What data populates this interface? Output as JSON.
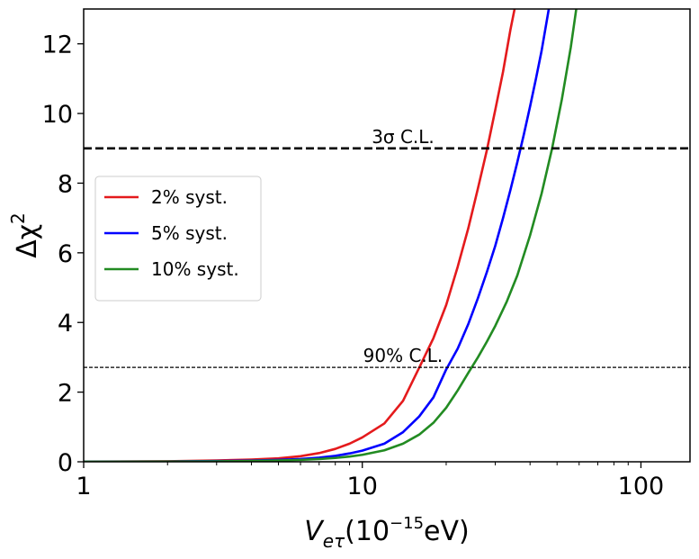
{
  "chart_data": {
    "type": "line",
    "xscale": "log",
    "xlim": [
      1,
      150
    ],
    "ylim": [
      0,
      13
    ],
    "xlabel": {
      "base": "V",
      "subscript": "eτ",
      "unit_open": "(10",
      "unit_exp": "−15",
      "unit_close": "eV)"
    },
    "ylabel": {
      "base": "Δχ",
      "exp": "2"
    },
    "xticks": [
      {
        "value": 1,
        "label": "1"
      },
      {
        "value": 10,
        "label": "10"
      },
      {
        "value": 100,
        "label": "100"
      }
    ],
    "yticks": [
      {
        "value": 0,
        "label": "0"
      },
      {
        "value": 2,
        "label": "2"
      },
      {
        "value": 4,
        "label": "4"
      },
      {
        "value": 6,
        "label": "6"
      },
      {
        "value": 8,
        "label": "8"
      },
      {
        "value": 10,
        "label": "10"
      },
      {
        "value": 12,
        "label": "12"
      }
    ],
    "legend_position": "center-left",
    "grid": false,
    "series": [
      {
        "name": "2% syst.",
        "color": "#e41a1c",
        "x": [
          1,
          2,
          3,
          4,
          5,
          6,
          7,
          8,
          9,
          10,
          12,
          14,
          16,
          18,
          20,
          22,
          24,
          26,
          28,
          30,
          32,
          34,
          35.2
        ],
        "y": [
          0.004,
          0.016,
          0.036,
          0.064,
          0.1,
          0.16,
          0.25,
          0.37,
          0.52,
          0.7,
          1.1,
          1.75,
          2.7,
          3.55,
          4.5,
          5.6,
          6.7,
          7.85,
          8.95,
          10.1,
          11.2,
          12.4,
          13.0
        ]
      },
      {
        "name": "5% syst.",
        "color": "#0000ff",
        "x": [
          1,
          2,
          3,
          4,
          5,
          6,
          7,
          8,
          9,
          10,
          12,
          14,
          16,
          18,
          20,
          22,
          24,
          26,
          28,
          30,
          32,
          34,
          36,
          38,
          40,
          42,
          44,
          46.7
        ],
        "y": [
          0.002,
          0.009,
          0.02,
          0.035,
          0.055,
          0.08,
          0.12,
          0.17,
          0.24,
          0.32,
          0.52,
          0.85,
          1.3,
          1.85,
          2.65,
          3.25,
          3.95,
          4.7,
          5.45,
          6.2,
          7.0,
          7.8,
          8.6,
          9.4,
          10.2,
          11.0,
          11.8,
          13.0
        ]
      },
      {
        "name": "10% syst.",
        "color": "#228b22",
        "x": [
          1,
          2,
          3,
          4,
          5,
          6,
          7,
          8,
          9,
          10,
          12,
          14,
          16,
          18,
          20,
          22,
          24,
          26,
          28,
          30,
          33,
          36,
          40,
          44,
          48,
          52,
          56,
          58.6
        ],
        "y": [
          0.001,
          0.006,
          0.013,
          0.023,
          0.036,
          0.055,
          0.08,
          0.11,
          0.15,
          0.2,
          0.33,
          0.52,
          0.78,
          1.12,
          1.55,
          2.05,
          2.55,
          3.0,
          3.45,
          3.9,
          4.6,
          5.35,
          6.5,
          7.7,
          9.0,
          10.4,
          11.9,
          13.0
        ]
      }
    ],
    "hlines": [
      {
        "y": 9.0,
        "label": "3σ C.L.",
        "style": "dashed-thick",
        "label_x": 14
      },
      {
        "y": 2.71,
        "label": "90% C.L.",
        "style": "dashed-thin",
        "label_x": 14
      }
    ]
  }
}
